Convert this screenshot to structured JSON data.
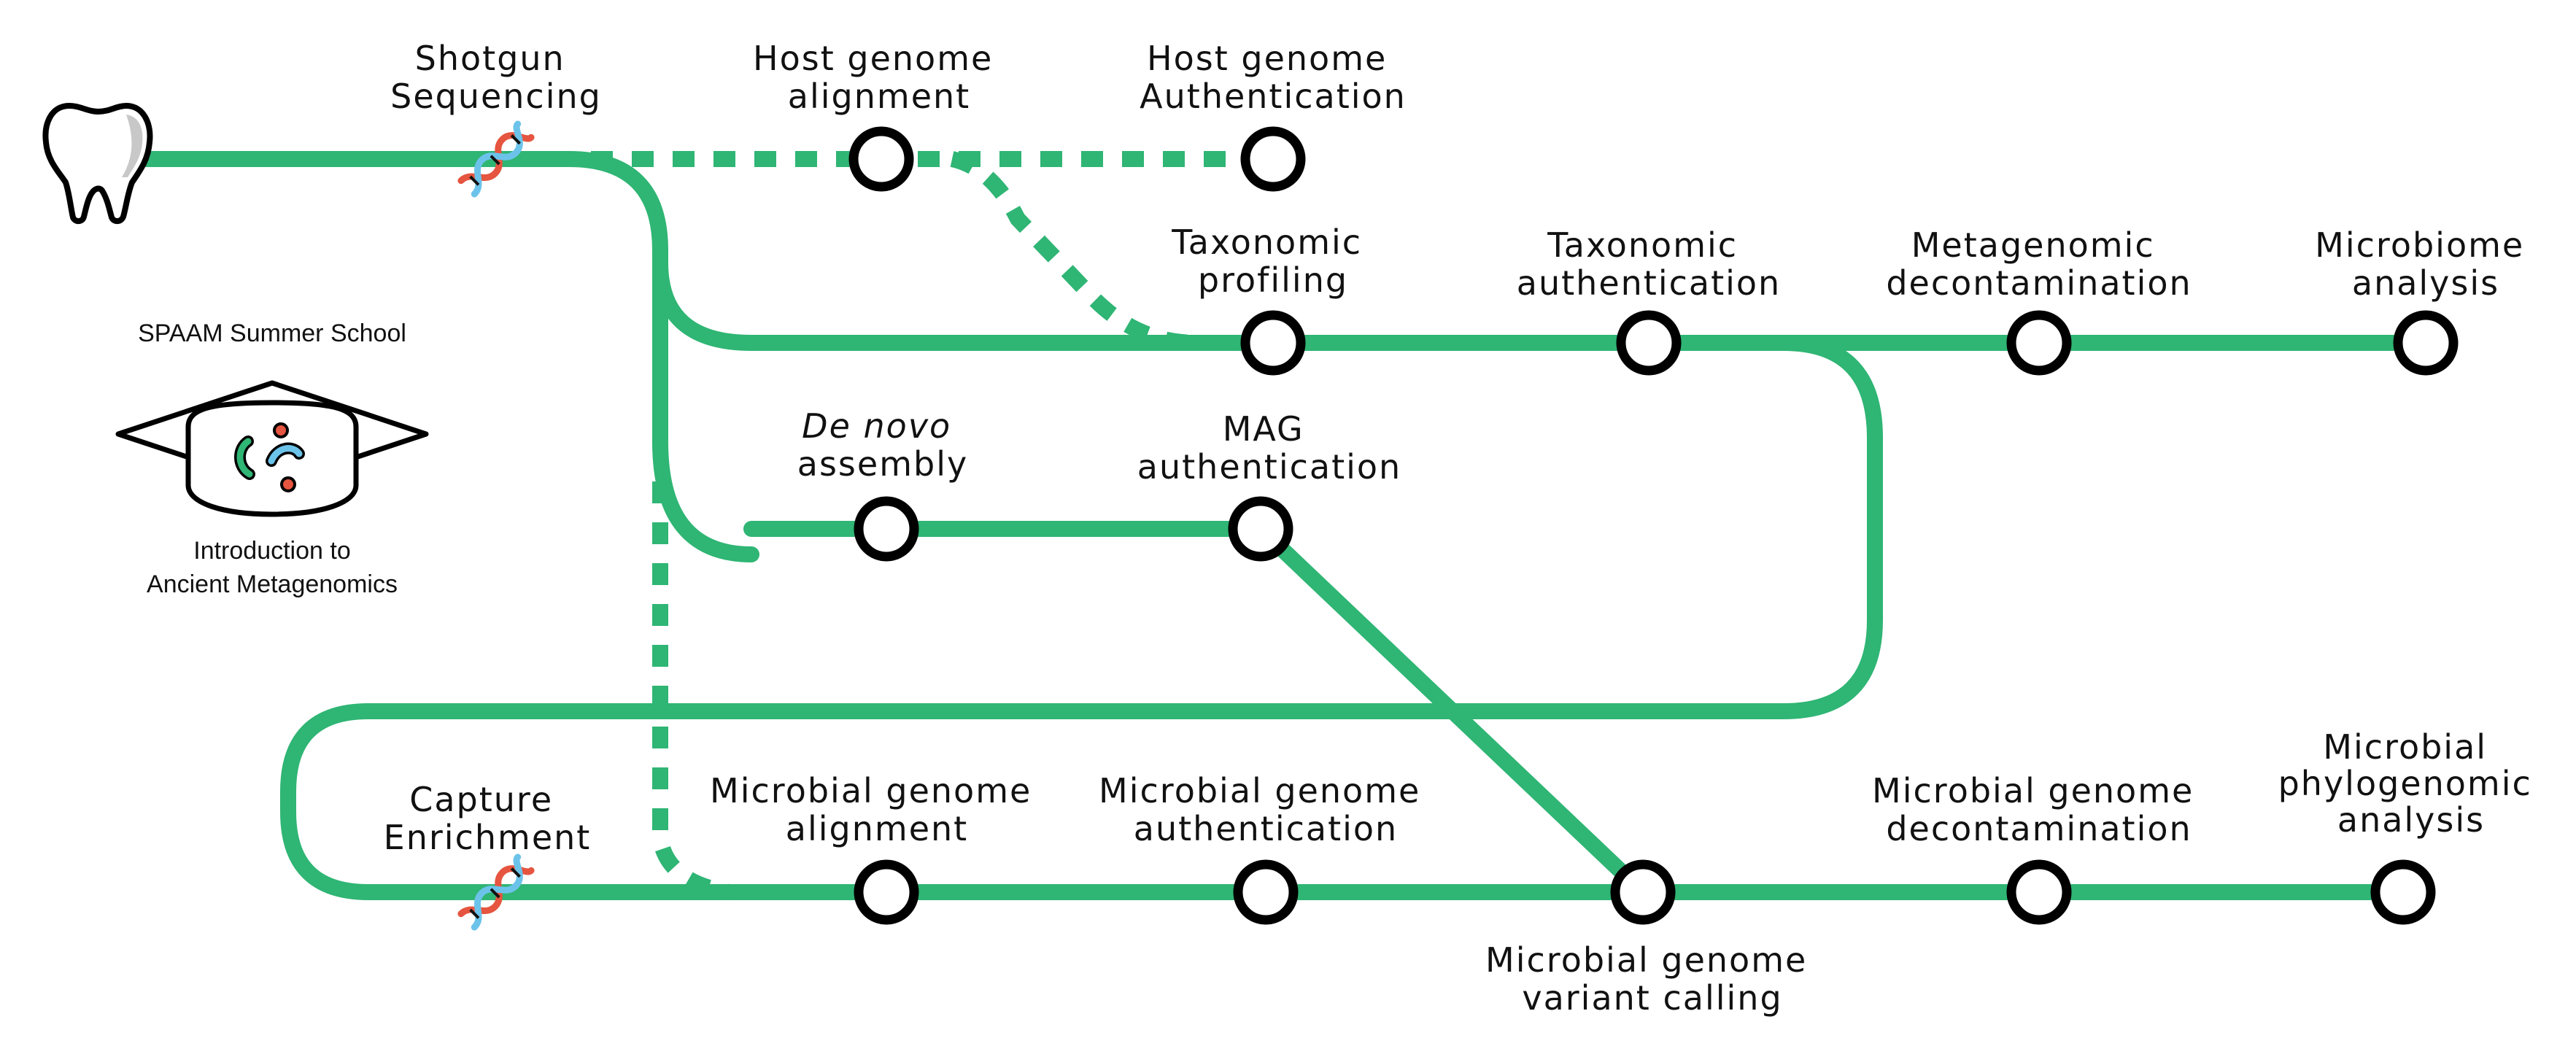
{
  "badge": {
    "title": "SPAAM Summer School",
    "subtitle_line1": "Introduction to",
    "subtitle_line2": "Ancient Metagenomics"
  },
  "icons": {
    "start": "tooth-icon",
    "sequencing": "dna-icon",
    "badge": "graduation-cap-bacteria-icon"
  },
  "colors": {
    "line": "#2fb574",
    "stop_ring": "#000000",
    "dna_left": "#e5553f",
    "dna_right": "#6cc3ea"
  },
  "stations": {
    "shotgun_sequencing": [
      "Shotgun",
      "Sequencing"
    ],
    "host_genome_alignment": [
      "Host genome",
      "alignment"
    ],
    "host_genome_authentication": [
      "Host genome",
      "Authentication"
    ],
    "taxonomic_profiling": [
      "Taxonomic",
      "profiling"
    ],
    "taxonomic_authentication": [
      "Taxonomic",
      "authentication"
    ],
    "metagenomic_decontamination": [
      "Metagenomic",
      "decontamination"
    ],
    "microbiome_analysis": [
      "Microbiome",
      "analysis"
    ],
    "de_novo_assembly": [
      "De novo",
      "assembly"
    ],
    "mag_authentication": [
      "MAG",
      "authentication"
    ],
    "capture_enrichment": [
      "Capture",
      "Enrichment"
    ],
    "microbial_genome_alignment": [
      "Microbial genome",
      "alignment"
    ],
    "microbial_genome_authentication": [
      "Microbial genome",
      "authentication"
    ],
    "microbial_genome_variant_calling": [
      "Microbial genome",
      "variant calling"
    ],
    "microbial_genome_decontamination": [
      "Microbial genome",
      "decontamination"
    ],
    "microbial_phylogenomic_analysis": [
      "Microbial",
      "phylogenomic",
      "analysis"
    ]
  }
}
